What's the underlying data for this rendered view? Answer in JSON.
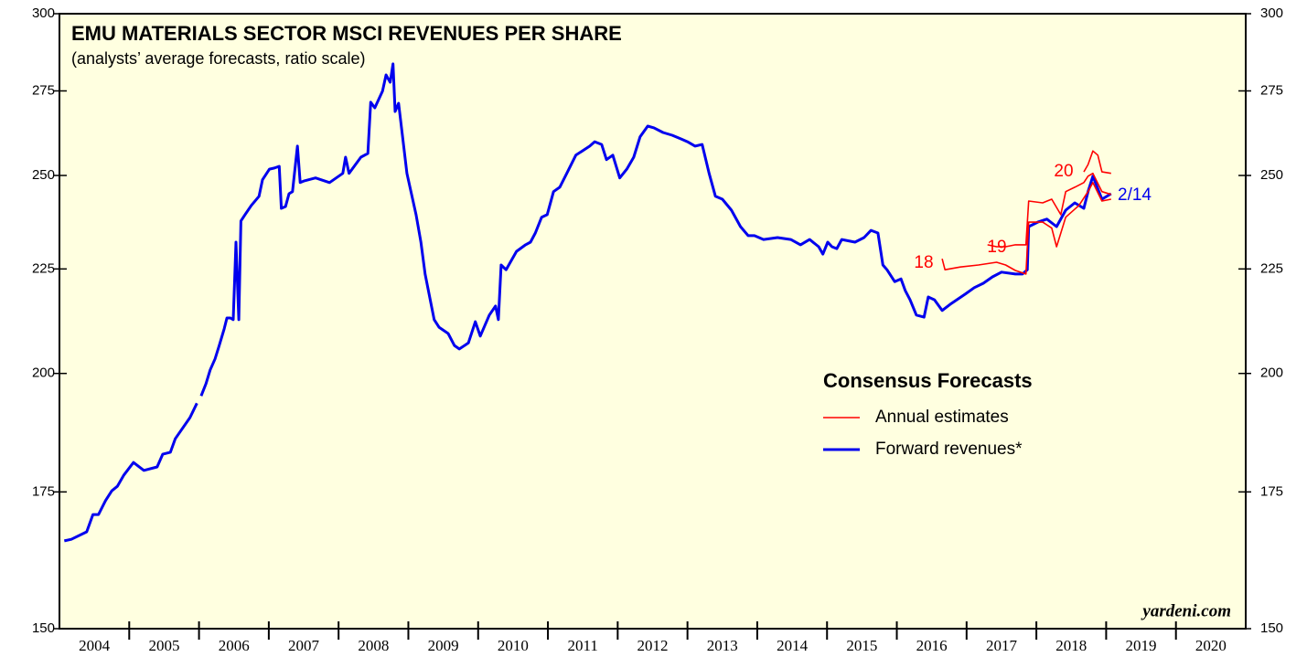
{
  "chart_data": {
    "type": "line",
    "title": "EMU MATERIALS SECTOR MSCI REVENUES PER SHARE",
    "subtitle": "(analysts’ average forecasts, ratio scale)",
    "source": "yardeni.com",
    "legend_title": "Consensus Forecasts",
    "log_scale": true,
    "categories": [
      "2004",
      "2005",
      "2006",
      "2007",
      "2008",
      "2009",
      "2010",
      "2011",
      "2012",
      "2013",
      "2014",
      "2015",
      "2016",
      "2017",
      "2018",
      "2019",
      "2020"
    ],
    "xlim": [
      2004,
      2021
    ],
    "ylim": [
      150,
      300
    ],
    "yticks": [
      150,
      175,
      200,
      225,
      250,
      275,
      300
    ],
    "annotations": [
      "18",
      "19",
      "20",
      "2/14"
    ],
    "series": [
      {
        "name": "Annual estimates",
        "color": "#ff0000",
        "x": [
          2016.65,
          2016.69,
          2016.91,
          2017.17,
          2017.43,
          2017.56,
          2017.7,
          2017.85,
          2017.89,
          2018.09,
          2018.22,
          2018.29,
          2018.42,
          2018.61,
          2018.74,
          2018.81,
          2018.94,
          2019.07,
          2019.1,
          2017.3,
          2017.43,
          2017.56,
          2017.7,
          2017.85,
          2017.89,
          2018.09,
          2018.22,
          2018.35,
          2018.42,
          2018.55,
          2018.68,
          2018.74,
          2018.81,
          2018.94,
          2019.07,
          2019.1,
          2018.68,
          2018.74,
          2018.81,
          2018.88,
          2018.94,
          2019.07
        ],
        "values": [
          227.6,
          224.8,
          225.5,
          226.0,
          226.7,
          226.0,
          224.6,
          223.7,
          237.2,
          237.2,
          235.6,
          230.7,
          238.5,
          241.7,
          245.5,
          248.0,
          242.9,
          243.4,
          null,
          231.2,
          230.7,
          230.7,
          231.2,
          231.2,
          242.9,
          242.4,
          243.4,
          239.2,
          245.5,
          246.7,
          248.0,
          249.8,
          250.6,
          245.5,
          244.7,
          null,
          251.0,
          253.1,
          257.0,
          255.8,
          251.0,
          250.6
        ]
      },
      {
        "name": "Forward revenues*",
        "color": "#0000ee",
        "x": [
          2004.07,
          2004.17,
          2004.39,
          2004.48,
          2004.56,
          2004.66,
          2004.75,
          2004.83,
          2004.92,
          2005.06,
          2005.21,
          2005.4,
          2005.48,
          2005.59,
          2005.66,
          2005.87,
          2005.97,
          2006.0,
          2006.03,
          2006.1,
          2006.16,
          2006.23,
          2006.29,
          2006.36,
          2006.4,
          2006.45,
          2006.49,
          2006.53,
          2006.57,
          2006.6,
          2006.66,
          2006.75,
          2006.86,
          2006.91,
          2007.01,
          2007.08,
          2007.15,
          2007.18,
          2007.24,
          2007.29,
          2007.34,
          2007.41,
          2007.45,
          2007.51,
          2007.67,
          2007.87,
          2008.06,
          2008.1,
          2008.15,
          2008.32,
          2008.42,
          2008.46,
          2008.52,
          2008.63,
          2008.68,
          2008.74,
          2008.78,
          2008.81,
          2008.86,
          2008.98,
          2009.11,
          2009.18,
          2009.24,
          2009.37,
          2009.44,
          2009.57,
          2009.66,
          2009.73,
          2009.86,
          2009.96,
          2010.03,
          2010.16,
          2010.25,
          2010.29,
          2010.33,
          2010.4,
          2010.55,
          2010.68,
          2010.75,
          2010.82,
          2010.91,
          2010.99,
          2011.08,
          2011.17,
          2011.27,
          2011.4,
          2011.6,
          2011.67,
          2011.77,
          2011.84,
          2011.93,
          2012.03,
          2012.13,
          2012.23,
          2012.32,
          2012.43,
          2012.52,
          2012.65,
          2012.78,
          2012.91,
          2013.0,
          2013.11,
          2013.21,
          2013.31,
          2013.4,
          2013.5,
          2013.63,
          2013.76,
          2013.87,
          2013.96,
          2014.09,
          2014.29,
          2014.48,
          2014.62,
          2014.75,
          2014.88,
          2014.94,
          2015.01,
          2015.07,
          2015.14,
          2015.21,
          2015.4,
          2015.53,
          2015.63,
          2015.73,
          2015.8,
          2015.86,
          2015.97,
          2016.06,
          2016.12,
          2016.19,
          2016.28,
          2016.39,
          2016.45,
          2016.54,
          2016.65,
          2016.78,
          2016.98,
          2017.11,
          2017.24,
          2017.37,
          2017.5,
          2017.7,
          2017.8,
          2017.87,
          2017.89,
          2018.02,
          2018.15,
          2018.29,
          2018.42,
          2018.55,
          2018.68,
          2018.74,
          2018.81,
          2018.94,
          2019.07
        ],
        "values": [
          165.6,
          165.9,
          167.3,
          170.6,
          170.6,
          173.3,
          175.2,
          176.1,
          178.3,
          180.9,
          179.3,
          180.0,
          182.6,
          183.0,
          185.8,
          190.3,
          193.4,
          null,
          195.0,
          197.7,
          200.8,
          203.3,
          206.4,
          210.3,
          212.9,
          212.9,
          212.5,
          231.9,
          212.5,
          237.5,
          239.2,
          241.7,
          244.2,
          248.8,
          251.8,
          252.1,
          252.6,
          240.9,
          241.4,
          244.9,
          245.5,
          258.4,
          248.0,
          248.5,
          249.3,
          248.0,
          250.6,
          255.2,
          250.6,
          255.2,
          256.3,
          271.5,
          269.8,
          274.9,
          280.0,
          277.7,
          283.5,
          268.7,
          271.2,
          250.6,
          239.2,
          231.9,
          223.7,
          212.5,
          210.7,
          209.2,
          206.4,
          205.6,
          207.0,
          212.0,
          208.6,
          213.6,
          215.8,
          212.5,
          226.0,
          224.8,
          229.5,
          231.2,
          231.9,
          234.3,
          238.5,
          239.2,
          245.5,
          246.7,
          250.6,
          255.8,
          258.4,
          259.7,
          258.9,
          254.5,
          255.8,
          249.3,
          251.8,
          255.2,
          261.1,
          264.3,
          263.8,
          262.4,
          261.6,
          260.5,
          259.7,
          258.4,
          258.9,
          250.6,
          244.2,
          243.4,
          240.4,
          236.0,
          233.6,
          233.6,
          232.6,
          233.1,
          232.6,
          231.2,
          232.6,
          230.7,
          228.8,
          231.9,
          230.7,
          230.2,
          232.6,
          231.9,
          233.1,
          235.0,
          234.3,
          226.0,
          224.8,
          221.8,
          222.5,
          219.6,
          217.3,
          213.6,
          213.1,
          218.0,
          217.3,
          214.7,
          216.4,
          218.7,
          220.3,
          221.4,
          223.0,
          224.2,
          223.7,
          223.7,
          224.8,
          236.0,
          237.2,
          238.0,
          236.0,
          240.4,
          242.4,
          240.9,
          245.5,
          249.8,
          243.4,
          244.9
        ]
      }
    ]
  }
}
